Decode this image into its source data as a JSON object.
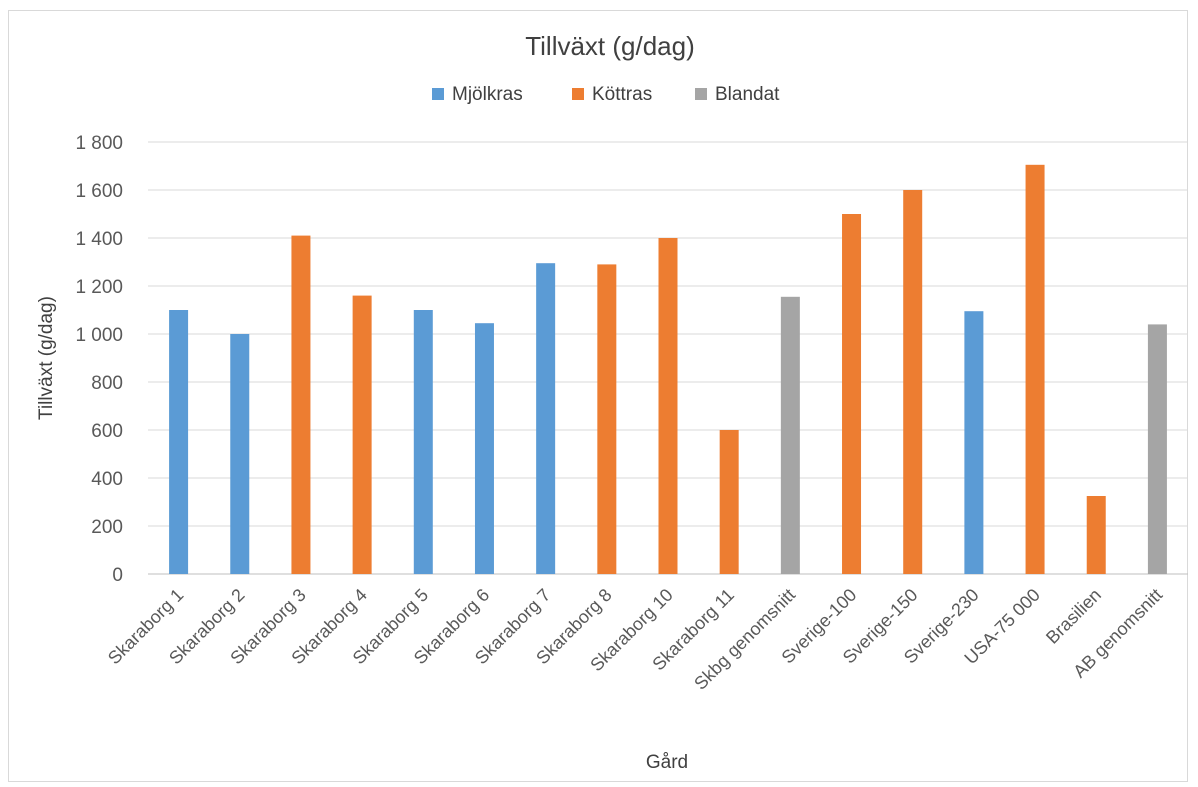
{
  "chart_data": {
    "type": "bar",
    "title": "Tillväxt (g/dag)",
    "xlabel": "Gård",
    "ylabel": "Tillväxt (g/dag)",
    "ylim": [
      0,
      1800
    ],
    "yticks": [
      0,
      200,
      400,
      600,
      800,
      1000,
      1200,
      1400,
      1600,
      1800
    ],
    "ytick_labels": [
      "0",
      "200",
      "400",
      "600",
      "800",
      "1 000",
      "1 200",
      "1 400",
      "1 600",
      "1 800"
    ],
    "grid": true,
    "legend_position": "top",
    "legend": [
      {
        "name": "Mjölkras",
        "color": "#5b9bd5"
      },
      {
        "name": "Köttras",
        "color": "#ed7d31"
      },
      {
        "name": "Blandat",
        "color": "#a5a5a5"
      }
    ],
    "categories": [
      "Skaraborg 1",
      "Skaraborg 2",
      "Skaraborg 3",
      "Skaraborg 4",
      "Skaraborg 5",
      "Skaraborg 6",
      "Skaraborg 7",
      "Skaraborg 8",
      "Skaraborg 10",
      "Skaraborg 11",
      "Skbg genomsnitt",
      "Sverige-100",
      "Sverige-150",
      "Sverige-230",
      "USA-75 000",
      "Brasilien",
      "AB genomsnitt"
    ],
    "values": [
      1100,
      1000,
      1410,
      1160,
      1100,
      1045,
      1295,
      1290,
      1400,
      600,
      1155,
      1500,
      1600,
      1095,
      1705,
      325,
      1040
    ],
    "group": [
      "Mjölkras",
      "Mjölkras",
      "Köttras",
      "Köttras",
      "Mjölkras",
      "Mjölkras",
      "Mjölkras",
      "Köttras",
      "Köttras",
      "Köttras",
      "Blandat",
      "Köttras",
      "Köttras",
      "Mjölkras",
      "Köttras",
      "Köttras",
      "Blandat"
    ]
  }
}
